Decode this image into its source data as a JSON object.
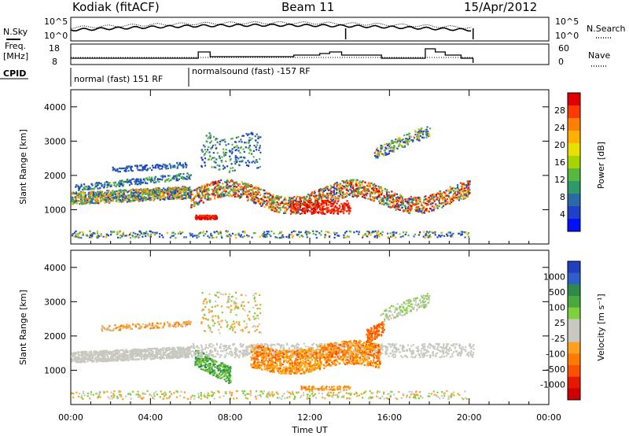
{
  "chart_data": [
    {
      "type": "line",
      "title": "Kodiak (fitACF)",
      "beam": "Beam 11",
      "date": "15/Apr/2012",
      "left_label": "N.Sky",
      "right_label": "N.Search",
      "y_left_ticks": [
        "10^5",
        "10^0"
      ],
      "y_right_ticks": [
        "10^5",
        "10^0"
      ]
    },
    {
      "type": "line",
      "left_label_1": "Freq.",
      "left_label_2": "[MHz]",
      "right_label": "Nave",
      "y_left_ticks": [
        "18",
        "8"
      ],
      "y_right_ticks": [
        "60",
        "0"
      ],
      "cpid_label": "CPID",
      "cpid_segments": [
        {
          "label": "normal (fast) 151 RF",
          "start": 0,
          "end": 5.95
        },
        {
          "label": "normalsound (fast) -157 RF",
          "start": 5.95,
          "end": 20.2
        }
      ]
    },
    {
      "type": "heatmap",
      "ylabel": "Slant Range [km]",
      "y_ticks": [
        1000,
        2000,
        3000,
        4000
      ],
      "ylim": [
        0,
        4500
      ],
      "colorbar_label": "Power [dB]",
      "colorbar_ticks": [
        "28",
        "24",
        "20",
        "16",
        "12",
        "8",
        "4"
      ],
      "colorbar_colors": [
        "#e00000",
        "#ff3a00",
        "#ff8000",
        "#ffb000",
        "#e8e000",
        "#a6d400",
        "#56b83c",
        "#2e9a6a",
        "#2a6aa8",
        "#2040c8",
        "#0010ff"
      ]
    },
    {
      "type": "heatmap",
      "ylabel": "Slant Range [km]",
      "y_ticks": [
        1000,
        2000,
        3000,
        4000
      ],
      "ylim": [
        0,
        4500
      ],
      "xlabel": "Time UT",
      "x_ticks": [
        "00:00",
        "04:00",
        "08:00",
        "12:00",
        "16:00",
        "20:00",
        "00:00"
      ],
      "xlim": [
        0,
        24
      ],
      "colorbar_label": "Velocity [m s⁻¹]",
      "colorbar_ticks": [
        "1000",
        "500",
        "100",
        "25",
        "-25",
        "-100",
        "-500",
        "-1000"
      ],
      "colorbar_colors": [
        "#2040c0",
        "#2e60c8",
        "#2e8a4a",
        "#4aa83c",
        "#7ed03c",
        "#c8c8c0",
        "#c8c8c0",
        "#ffa020",
        "#ff7a00",
        "#ff5000",
        "#e81800",
        "#d00000"
      ]
    }
  ]
}
